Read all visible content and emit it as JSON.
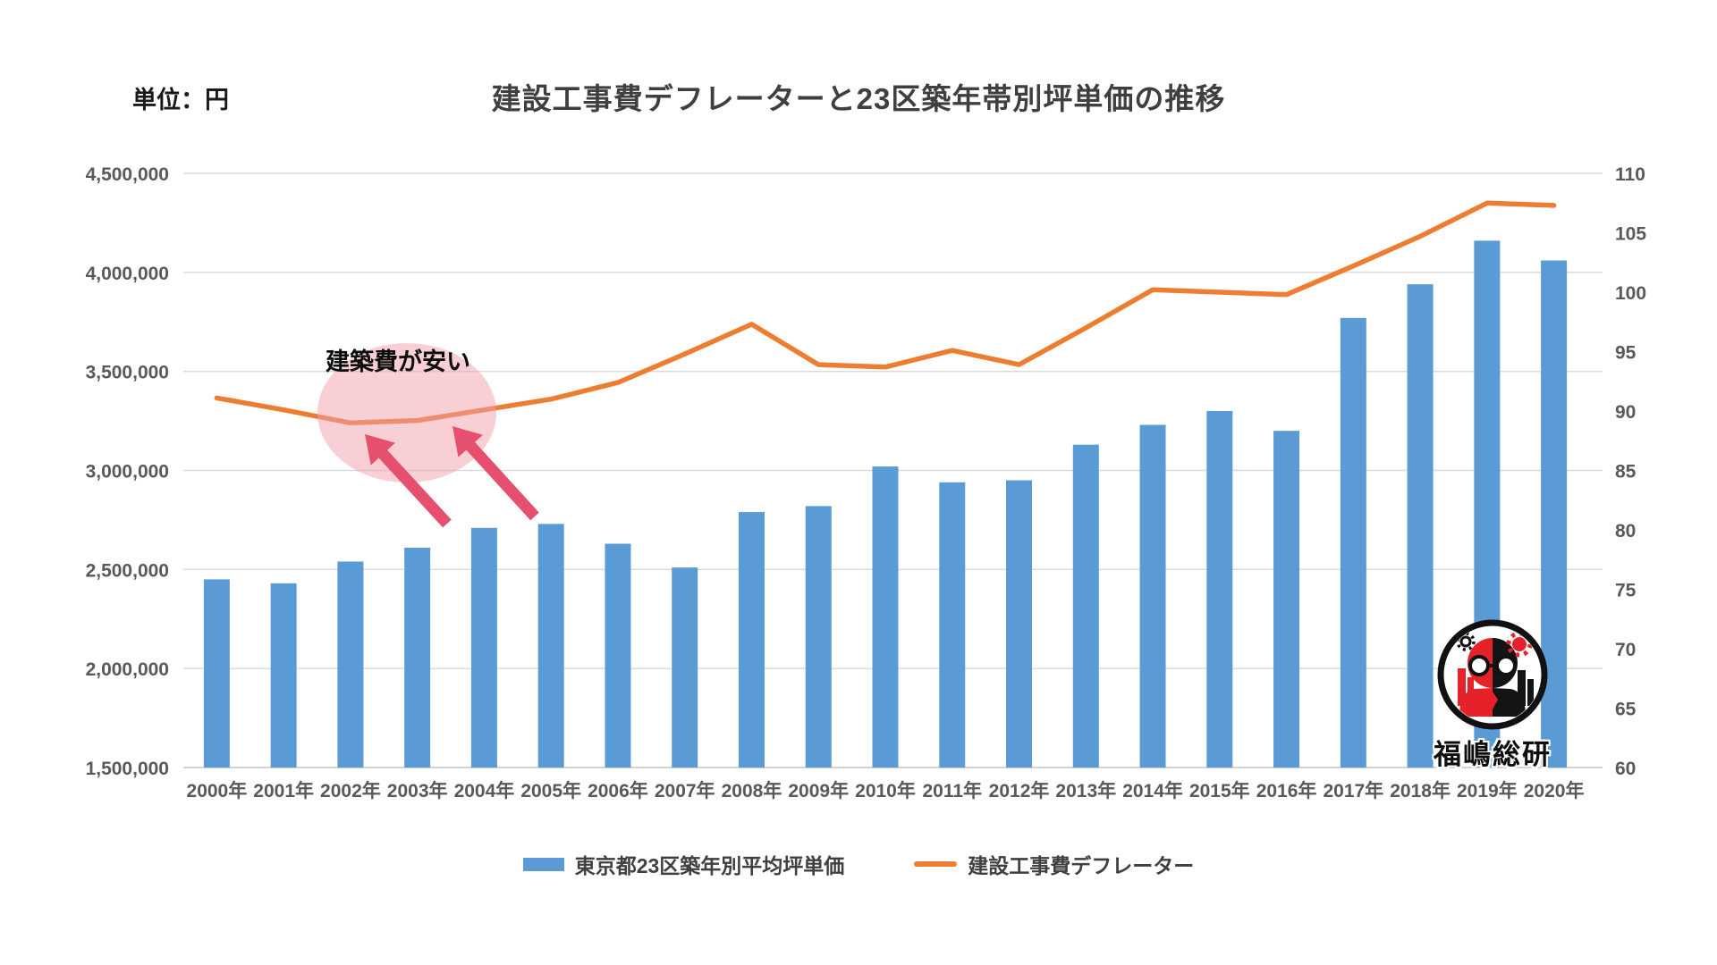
{
  "header": {
    "unit_label": "単位：円",
    "title": "建設工事費デフレーターと23区築年帯別坪単価の推移"
  },
  "chart_data": {
    "type": "bar",
    "subtype": "bar+line combo, dual axis",
    "title": "建設工事費デフレーターと23区築年帯別坪単価の推移",
    "xlabel": "",
    "ylabel_left": "単位：円",
    "ylabel_right": "",
    "grid": true,
    "legend_position": "bottom",
    "categories": [
      "2000年",
      "2001年",
      "2002年",
      "2003年",
      "2004年",
      "2005年",
      "2006年",
      "2007年",
      "2008年",
      "2009年",
      "2010年",
      "2011年",
      "2012年",
      "2013年",
      "2014年",
      "2015年",
      "2016年",
      "2017年",
      "2018年",
      "2019年",
      "2020年"
    ],
    "series": [
      {
        "name": "東京都23区築年別平均坪単価",
        "type": "bar",
        "axis": "left",
        "color": "#5b9bd5",
        "values": [
          2450000,
          2430000,
          2540000,
          2610000,
          2710000,
          2730000,
          2630000,
          2510000,
          2790000,
          2820000,
          3020000,
          2940000,
          2950000,
          3130000,
          3230000,
          3300000,
          3200000,
          3770000,
          3940000,
          4160000,
          4060000
        ]
      },
      {
        "name": "建設工事費デフレーター",
        "type": "line",
        "axis": "right",
        "color": "#ed7d31",
        "values": [
          91.1,
          90.1,
          89.0,
          89.2,
          90.1,
          91.0,
          92.4,
          94.8,
          97.3,
          93.9,
          93.7,
          95.1,
          93.9,
          97.0,
          100.2,
          100.0,
          99.8,
          102.2,
          104.7,
          107.5,
          107.3
        ]
      }
    ],
    "left_axis": {
      "min": 1500000,
      "max": 4500000,
      "step": 500000,
      "tick_labels": [
        "4,500,000",
        "4,000,000",
        "3,500,000",
        "3,000,000",
        "2,500,000",
        "2,000,000",
        "1,500,000"
      ]
    },
    "right_axis": {
      "min": 60,
      "max": 110,
      "step": 5,
      "tick_labels": [
        "110",
        "105",
        "100",
        "95",
        "90",
        "85",
        "80",
        "75",
        "70",
        "65",
        "60"
      ]
    }
  },
  "annotation": {
    "text": "建築費が安い",
    "highlight_color": "#f2a0ac",
    "arrow_color": "#e6506e"
  },
  "logo": {
    "text": "福嶋総研",
    "red": "#e62129",
    "black": "#141414"
  },
  "colors": {
    "background": "#ffffff",
    "gridline": "#d9d9d9",
    "tick_text": "#595959",
    "title_text": "#3f3f3f"
  }
}
